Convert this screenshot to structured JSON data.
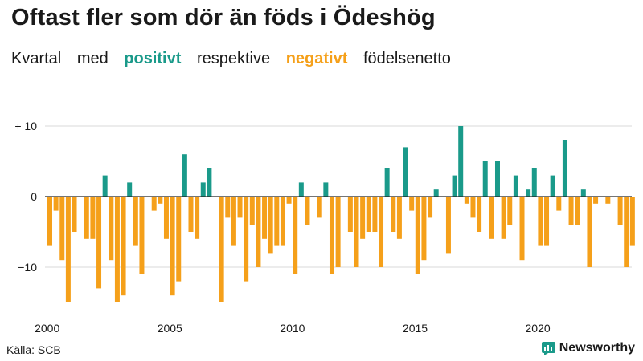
{
  "title": "Oftast fler som dör än föds i Ödeshög",
  "subtitle": {
    "part1": "Kvartal",
    "part2": "med",
    "positive_word": "positivt",
    "part3": "respektive",
    "negative_word": "negativt",
    "part4": "födelsenetto"
  },
  "source": "Källa: SCB",
  "brand": "Newsworthy",
  "colors": {
    "positive": "#1a9a8a",
    "negative": "#f5a01a",
    "text": "#1a1a1a",
    "grid": "#d9d9d9",
    "zero": "#222222"
  },
  "chart_data": {
    "type": "bar",
    "x_start": "2000 Q1",
    "xtick_labels": [
      "2000",
      "2005",
      "2010",
      "2015",
      "2020"
    ],
    "ytick_labels": [
      "+ 10",
      "0",
      "−10"
    ],
    "yticks": [
      10,
      0,
      -10
    ],
    "ylim": [
      -15,
      10
    ],
    "values": [
      -7,
      -2,
      -9,
      -15,
      -5,
      0,
      -6,
      -6,
      -13,
      3,
      -9,
      -15,
      -14,
      2,
      -7,
      -11,
      0,
      -2,
      -1,
      -6,
      -14,
      -12,
      6,
      -5,
      -6,
      2,
      4,
      0,
      -15,
      -3,
      -7,
      -3,
      -12,
      -4,
      -10,
      -6,
      -8,
      -7,
      -7,
      -1,
      -11,
      2,
      -4,
      0,
      -3,
      2,
      -11,
      -10,
      0,
      -5,
      -10,
      -6,
      -5,
      -5,
      -10,
      4,
      -5,
      -6,
      7,
      -2,
      -11,
      -9,
      -3,
      1,
      0,
      -8,
      3,
      10,
      -1,
      -3,
      -5,
      5,
      -6,
      5,
      -6,
      -4,
      3,
      -9,
      1,
      4,
      -7,
      -7,
      3,
      -2,
      8,
      -4,
      -4,
      1,
      -10,
      -1,
      0,
      -1,
      0,
      -4,
      -10,
      -7
    ]
  }
}
